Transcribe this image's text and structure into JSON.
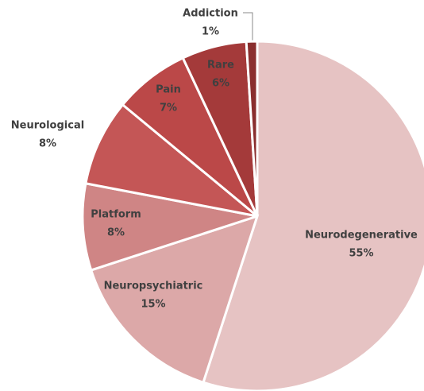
{
  "chart_data": {
    "type": "pie",
    "categories": [
      "Neurodegenerative",
      "Neuropsychiatric",
      "Platform",
      "Neurological",
      "Pain",
      "Rare",
      "Addiction"
    ],
    "values": [
      55,
      15,
      8,
      8,
      7,
      6,
      1
    ],
    "value_labels": [
      "55%",
      "15%",
      "8%",
      "8%",
      "7%",
      "6%",
      "1%"
    ],
    "colors": [
      "#e6c3c3",
      "#dca8a8",
      "#cf8585",
      "#c45656",
      "#bb4848",
      "#a43a3a",
      "#8a2e2e"
    ]
  }
}
